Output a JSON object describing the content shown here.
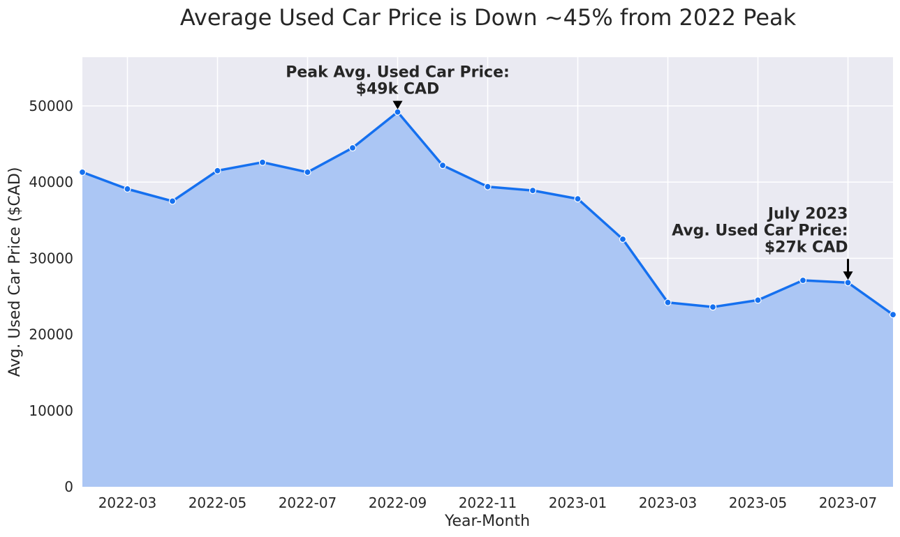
{
  "chart_data": {
    "type": "area",
    "title": "Average Used Car Price is Down ~45% from 2022 Peak",
    "xlabel": "Year-Month",
    "ylabel": "Avg. Used Car Price ($CAD)",
    "x": [
      "2022-02",
      "2022-03",
      "2022-04",
      "2022-05",
      "2022-06",
      "2022-07",
      "2022-08",
      "2022-09",
      "2022-10",
      "2022-11",
      "2022-12",
      "2023-01",
      "2023-02",
      "2023-03",
      "2023-04",
      "2023-05",
      "2023-06",
      "2023-07",
      "2023-08"
    ],
    "values": [
      41300,
      39100,
      37500,
      41500,
      42600,
      41300,
      44500,
      49200,
      42200,
      39400,
      38900,
      37800,
      32500,
      24200,
      23600,
      24500,
      27100,
      26800,
      22600
    ],
    "ylim": [
      0,
      56400
    ],
    "yticks": [
      0,
      10000,
      20000,
      30000,
      40000,
      50000
    ],
    "xticks": [
      "2022-03",
      "2022-05",
      "2022-07",
      "2022-09",
      "2022-11",
      "2023-01",
      "2023-03",
      "2023-05",
      "2023-07"
    ],
    "grid": true,
    "colors": {
      "line": "#1570ef",
      "fill": "#a8c4f4",
      "background": "#eaeaf2",
      "grid": "#ffffff",
      "marker_edge": "#ffffff"
    },
    "annotations": [
      {
        "lines": [
          "Peak Avg. Used Car Price:",
          "$49k CAD"
        ],
        "x": "2022-09",
        "y": 49200,
        "align": "center"
      },
      {
        "lines": [
          "July 2023",
          "Avg. Used Car Price:",
          "$27k CAD"
        ],
        "x": "2023-07",
        "y": 26800,
        "align": "right"
      }
    ]
  }
}
